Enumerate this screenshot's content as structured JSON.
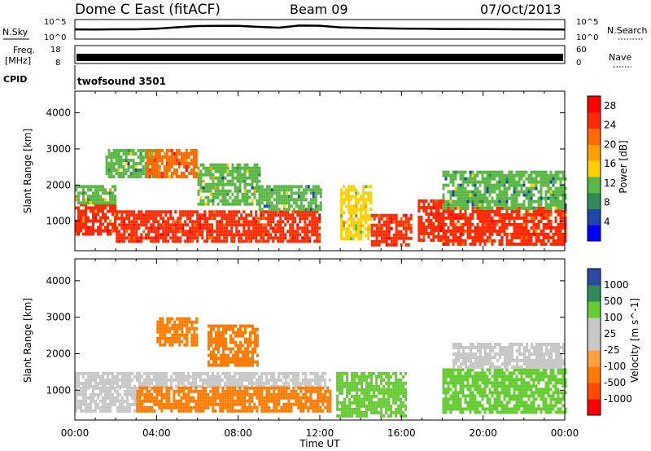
{
  "header": {
    "station": "Dome C East (fitACF)",
    "beam": "Beam 09",
    "date": "07/Oct/2013"
  },
  "side_labels": {
    "nsky": "N.Sky",
    "freq_line1": "Freq.",
    "freq_line2": "[MHz]",
    "cpid": "CPID",
    "nsearch": "N.Search",
    "nave": "Nave",
    "cpid_value": "twofsound 3501"
  },
  "colors": {
    "power_scale": [
      "#0000ff",
      "#1e46a8",
      "#2e8b57",
      "#5ab845",
      "#ffd000",
      "#ffa000",
      "#ff6a00",
      "#ff2a00",
      "#ff0000"
    ],
    "velocity_scale": [
      "#ff0000",
      "#ff4a00",
      "#ff7a00",
      "#ffa040",
      "#c8c8c8",
      "#c8c8c8",
      "#66cc33",
      "#2e8b57",
      "#2a4aa0"
    ]
  },
  "chart_data": [
    {
      "type": "line",
      "title": "",
      "left_label": "N.Sky",
      "right_label": "N.Search",
      "y_ticks_left": [
        "10^5",
        "10^0"
      ],
      "y_ticks_right": [
        "10^5",
        "10^0"
      ],
      "x_range": [
        "00:00",
        "24:00"
      ],
      "series": [
        {
          "values": [
            300,
            280,
            320,
            310,
            450,
            1200,
            2500,
            3000,
            2800,
            1500,
            900,
            3500,
            3200,
            1100,
            800,
            600,
            500,
            450,
            400,
            380,
            350,
            330,
            310,
            300,
            290
          ]
        }
      ]
    },
    {
      "type": "line",
      "left_label": "Freq. [MHz]",
      "right_label": "Nave",
      "y_ticks_left": [
        "18",
        "8"
      ],
      "y_ticks_right": [
        "60",
        "0"
      ],
      "series": [
        {
          "name": "Freq.",
          "values": [
            10,
            10,
            10,
            10,
            10,
            10,
            10,
            10,
            10,
            10,
            10,
            10,
            10,
            10,
            10,
            10,
            10,
            10,
            10,
            10,
            10,
            10,
            10,
            10,
            10
          ]
        }
      ]
    },
    {
      "type": "heatmap",
      "title": "Power",
      "ylabel": "Slant Range [km]",
      "xlabel": "Time UT",
      "x_ticks": [
        "00:00",
        "04:00",
        "08:00",
        "12:00",
        "16:00",
        "20:00",
        "00:00"
      ],
      "y_ticks": [
        "1000",
        "2000",
        "3000",
        "4000"
      ],
      "ylim": [
        180,
        4600
      ],
      "colorbar_label": "Power [dB]",
      "colorbar_ticks": [
        "4",
        "8",
        "12",
        "16",
        "20",
        "24",
        "28"
      ],
      "zlim": [
        0,
        30
      ],
      "regions": [
        {
          "x": [
            0.0,
            2.0
          ],
          "y": [
            600,
            1500
          ],
          "value": 24
        },
        {
          "x": [
            0.0,
            2.0
          ],
          "y": [
            1500,
            2000
          ],
          "value": 12
        },
        {
          "x": [
            1.5,
            4.0
          ],
          "y": [
            2200,
            3000
          ],
          "value": 10
        },
        {
          "x": [
            2.0,
            12.0
          ],
          "y": [
            400,
            1300
          ],
          "value": 26
        },
        {
          "x": [
            3.5,
            6.0
          ],
          "y": [
            2200,
            3000
          ],
          "value": 22
        },
        {
          "x": [
            6.0,
            9.0
          ],
          "y": [
            1500,
            2600
          ],
          "value": 12
        },
        {
          "x": [
            9.0,
            12.0
          ],
          "y": [
            1300,
            2000
          ],
          "value": 10
        },
        {
          "x": [
            13.0,
            14.5
          ],
          "y": [
            500,
            2000
          ],
          "value": 16
        },
        {
          "x": [
            14.5,
            16.5
          ],
          "y": [
            300,
            1200
          ],
          "value": 26
        },
        {
          "x": [
            16.8,
            18.0
          ],
          "y": [
            500,
            1600
          ],
          "value": 26
        },
        {
          "x": [
            18.0,
            24.0
          ],
          "y": [
            400,
            1400
          ],
          "value": 24
        },
        {
          "x": [
            18.0,
            24.0
          ],
          "y": [
            1400,
            2400
          ],
          "value": 10
        }
      ]
    },
    {
      "type": "heatmap",
      "title": "Velocity",
      "ylabel": "Slant Range [km]",
      "xlabel": "Time UT",
      "x_ticks": [
        "00:00",
        "04:00",
        "08:00",
        "12:00",
        "16:00",
        "20:00",
        "00:00"
      ],
      "y_ticks": [
        "1000",
        "2000",
        "3000",
        "4000"
      ],
      "ylim": [
        180,
        4600
      ],
      "colorbar_label": "Velocity [m s^-1]",
      "colorbar_ticks": [
        "1000",
        "500",
        "100",
        "25",
        "-25",
        "-100",
        "-500",
        "-1000"
      ],
      "regions": [
        {
          "x": [
            0.0,
            12.5
          ],
          "y": [
            1100,
            1500
          ],
          "value": 0
        },
        {
          "x": [
            0.0,
            3.0
          ],
          "y": [
            400,
            1100
          ],
          "value": 80
        },
        {
          "x": [
            3.0,
            12.5
          ],
          "y": [
            400,
            1100
          ],
          "value": -300
        },
        {
          "x": [
            4.0,
            6.0
          ],
          "y": [
            2200,
            3000
          ],
          "value": -300
        },
        {
          "x": [
            6.5,
            9.0
          ],
          "y": [
            1700,
            2800
          ],
          "value": -200
        },
        {
          "x": [
            12.8,
            16.2
          ],
          "y": [
            300,
            1500
          ],
          "value": 300
        },
        {
          "x": [
            18.0,
            24.0
          ],
          "y": [
            400,
            1600
          ],
          "value": 400
        },
        {
          "x": [
            18.5,
            24.0
          ],
          "y": [
            1600,
            2300
          ],
          "value": 0
        }
      ]
    }
  ]
}
